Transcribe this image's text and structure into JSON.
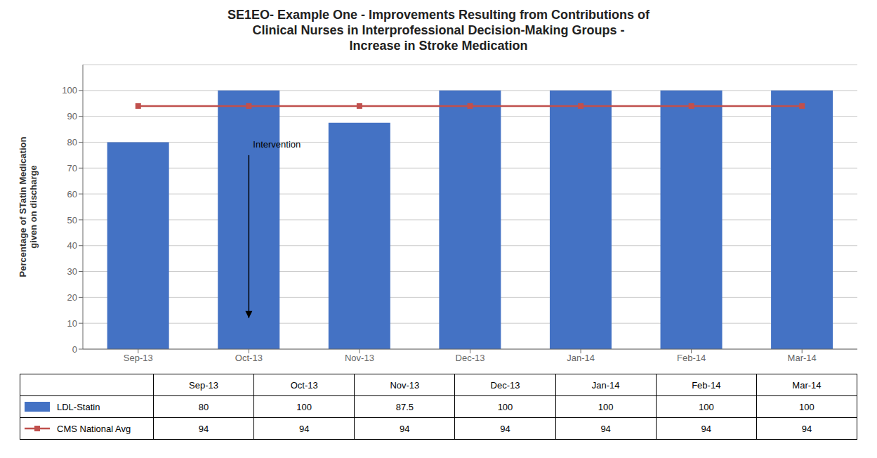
{
  "chart_data": {
    "type": "bar",
    "title": "SE1EO- Example One - Improvements Resulting from Contributions of\nClinical Nurses in Interprofessional Decision-Making Groups -\nIncrease in Stroke Medication",
    "ylabel": "Percentage of STatin Medication\ngiven on discharge",
    "categories": [
      "Sep-13",
      "Oct-13",
      "Nov-13",
      "Dec-13",
      "Jan-14",
      "Feb-14",
      "Mar-14"
    ],
    "series": [
      {
        "name": "LDL-Statin",
        "type": "bar",
        "color": "#4472C4",
        "values": [
          80,
          100,
          87.5,
          100,
          100,
          100,
          100
        ]
      },
      {
        "name": "CMS National Avg",
        "type": "line",
        "color": "#C0504D",
        "marker": "square",
        "values": [
          94,
          94,
          94,
          94,
          94,
          94,
          94
        ]
      }
    ],
    "ylim": [
      0,
      110
    ],
    "yticks": [
      0,
      10,
      20,
      30,
      40,
      50,
      60,
      70,
      80,
      90,
      100
    ],
    "grid": true,
    "legend": "bottom",
    "annotations": [
      {
        "text": "Intervention",
        "x": "Oct-13",
        "y": 78,
        "arrow_from": 75,
        "arrow_to": 12
      }
    ]
  }
}
